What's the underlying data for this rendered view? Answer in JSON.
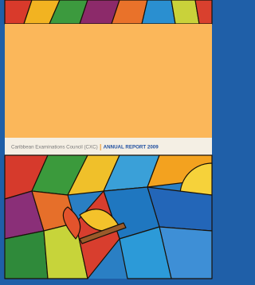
{
  "cover": {
    "publisher": "Caribbean Examinations Council (CXC)",
    "title": "ANNUAL REPORT 2009"
  }
}
